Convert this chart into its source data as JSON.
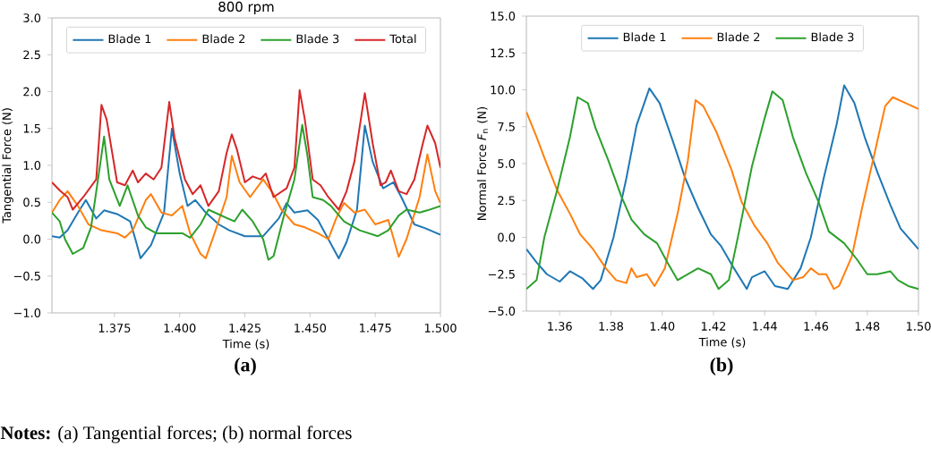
{
  "chart_data": [
    {
      "type": "line",
      "title": "800 rpm",
      "xlabel": "Time (s)",
      "ylabel": "Tangential Force (N)",
      "legend": "top",
      "xlim": [
        1.351,
        1.5
      ],
      "xticks": [
        1.375,
        {
          "value": 1.4,
          "label": "1.400"
        },
        1.425,
        {
          "value": 1.45,
          "label": "1.450"
        },
        1.475,
        {
          "value": 1.5,
          "label": "1.500"
        }
      ],
      "ylim": [
        -1,
        3
      ],
      "yticks": [
        {
          "value": -1,
          "label": "−1.0"
        },
        {
          "value": -0.5,
          "label": "−0.5"
        },
        {
          "value": 0,
          "label": "0.0"
        },
        0.5,
        {
          "value": 1,
          "label": "1.0"
        },
        1.5,
        {
          "value": 2,
          "label": "2.0"
        },
        2.5,
        {
          "value": 3,
          "label": "3.0"
        }
      ],
      "annotations": [
        "(a)",
        "**Notes:** (a) Tangential forces; (b) normal forces"
      ],
      "series": [
        {
          "name": "Blade 1",
          "color": "#1f77b4",
          "x": [
            1.351,
            1.354,
            1.357,
            1.361,
            1.364,
            1.368,
            1.371,
            1.376,
            1.381,
            1.383,
            1.385,
            1.389,
            1.394,
            1.397,
            1.4,
            1.403,
            1.406,
            1.41,
            1.415,
            1.419,
            1.425,
            1.432,
            1.438,
            1.441,
            1.444,
            1.449,
            1.453,
            1.457,
            1.461,
            1.464,
            1.468,
            1.471,
            1.474,
            1.478,
            1.482,
            1.485,
            1.49,
            1.494,
            1.5
          ],
          "values": [
            0.04,
            0.02,
            0.12,
            0.36,
            0.53,
            0.28,
            0.39,
            0.34,
            0.24,
            0.0,
            -0.26,
            -0.08,
            0.36,
            1.5,
            0.89,
            0.45,
            0.53,
            0.36,
            0.2,
            0.12,
            0.04,
            0.04,
            0.28,
            0.49,
            0.36,
            0.39,
            0.26,
            0.0,
            -0.26,
            -0.04,
            0.4,
            1.54,
            1.05,
            0.69,
            0.77,
            0.57,
            0.2,
            0.15,
            0.06
          ]
        },
        {
          "name": "Blade 2",
          "color": "#ff7f0e",
          "x": [
            1.351,
            1.354,
            1.357,
            1.361,
            1.365,
            1.37,
            1.376,
            1.379,
            1.382,
            1.387,
            1.389,
            1.393,
            1.397,
            1.401,
            1.404,
            1.408,
            1.41,
            1.413,
            1.418,
            1.42,
            1.423,
            1.427,
            1.432,
            1.436,
            1.439,
            1.444,
            1.448,
            1.453,
            1.457,
            1.46,
            1.463,
            1.467,
            1.471,
            1.475,
            1.48,
            1.484,
            1.487,
            1.492,
            1.495,
            1.498,
            1.5
          ],
          "values": [
            0.36,
            0.53,
            0.65,
            0.45,
            0.2,
            0.12,
            0.08,
            0.02,
            0.12,
            0.53,
            0.61,
            0.36,
            0.32,
            0.45,
            0.08,
            -0.2,
            -0.26,
            0.04,
            0.57,
            1.13,
            0.77,
            0.57,
            0.81,
            0.61,
            0.4,
            0.2,
            0.16,
            0.08,
            0.0,
            0.28,
            0.49,
            0.36,
            0.4,
            0.2,
            0.26,
            -0.24,
            0.0,
            0.57,
            1.15,
            0.65,
            0.49
          ]
        },
        {
          "name": "Blade 3",
          "color": "#2ca02c",
          "x": [
            1.351,
            1.354,
            1.356,
            1.359,
            1.363,
            1.366,
            1.369,
            1.371,
            1.373,
            1.377,
            1.38,
            1.384,
            1.387,
            1.391,
            1.396,
            1.401,
            1.404,
            1.408,
            1.411,
            1.416,
            1.421,
            1.424,
            1.428,
            1.432,
            1.434,
            1.436,
            1.44,
            1.444,
            1.447,
            1.449,
            1.451,
            1.455,
            1.458,
            1.463,
            1.469,
            1.476,
            1.48,
            1.484,
            1.487,
            1.492,
            1.495,
            1.5
          ],
          "values": [
            0.36,
            0.24,
            0.0,
            -0.2,
            -0.12,
            0.16,
            0.89,
            1.39,
            0.81,
            0.45,
            0.73,
            0.32,
            0.16,
            0.08,
            0.08,
            0.08,
            0.02,
            0.2,
            0.4,
            0.32,
            0.24,
            0.4,
            0.24,
            0.0,
            -0.28,
            -0.23,
            0.32,
            0.81,
            1.55,
            1.13,
            0.57,
            0.53,
            0.45,
            0.24,
            0.12,
            0.04,
            0.12,
            0.32,
            0.4,
            0.36,
            0.39,
            0.45
          ]
        },
        {
          "name": "Total",
          "color": "#d62728",
          "x": [
            1.351,
            1.354,
            1.357,
            1.359,
            1.363,
            1.368,
            1.37,
            1.372,
            1.376,
            1.379,
            1.382,
            1.384,
            1.387,
            1.39,
            1.393,
            1.396,
            1.398,
            1.402,
            1.405,
            1.408,
            1.411,
            1.415,
            1.418,
            1.42,
            1.422,
            1.425,
            1.428,
            1.431,
            1.433,
            1.436,
            1.441,
            1.444,
            1.446,
            1.448,
            1.451,
            1.454,
            1.457,
            1.461,
            1.464,
            1.467,
            1.471,
            1.474,
            1.477,
            1.479,
            1.481,
            1.484,
            1.487,
            1.49,
            1.493,
            1.495,
            1.498,
            1.5
          ],
          "values": [
            0.77,
            0.66,
            0.57,
            0.4,
            0.57,
            0.81,
            1.82,
            1.62,
            0.77,
            0.73,
            0.93,
            0.77,
            0.89,
            0.81,
            0.97,
            1.86,
            1.38,
            0.81,
            0.61,
            0.73,
            0.45,
            0.65,
            1.17,
            1.42,
            1.21,
            0.77,
            0.85,
            0.81,
            0.89,
            0.57,
            0.69,
            0.97,
            2.02,
            1.62,
            0.81,
            0.73,
            0.57,
            0.4,
            0.65,
            1.05,
            1.98,
            1.3,
            0.73,
            0.77,
            0.93,
            0.65,
            0.61,
            0.81,
            1.26,
            1.54,
            1.3,
            0.97
          ]
        }
      ]
    },
    {
      "type": "line",
      "xlabel": "Time (s)",
      "ylabel": "Normal Force *F*$_{n}$ (N)",
      "legend": "top",
      "xlim": [
        1.347,
        1.5
      ],
      "xticks": [
        1.36,
        1.38,
        {
          "value": 1.4,
          "label": "1.40"
        },
        1.42,
        1.44,
        1.46,
        1.48,
        {
          "value": 1.5,
          "label": "1.50"
        }
      ],
      "ylim": [
        -5,
        15
      ],
      "yticks": [
        {
          "value": -5,
          "label": "−5.0"
        },
        {
          "value": -2.5,
          "label": "−2.5"
        },
        {
          "value": 0,
          "label": "0.0"
        },
        2.5,
        {
          "value": 5,
          "label": "5.0"
        },
        7.5,
        {
          "value": 10,
          "label": "10.0"
        },
        12.5,
        {
          "value": 15,
          "label": "15.0"
        }
      ],
      "annotations": [
        "(b)"
      ],
      "series": [
        {
          "name": "Blade 1",
          "color": "#1f77b4",
          "x": [
            1.347,
            1.351,
            1.355,
            1.36,
            1.364,
            1.369,
            1.373,
            1.376,
            1.381,
            1.386,
            1.39,
            1.395,
            1.399,
            1.404,
            1.409,
            1.414,
            1.419,
            1.423,
            1.428,
            1.433,
            1.435,
            1.44,
            1.444,
            1.449,
            1.454,
            1.458,
            1.463,
            1.468,
            1.471,
            1.475,
            1.479,
            1.484,
            1.489,
            1.493,
            1.5
          ],
          "values": [
            -0.8,
            -1.7,
            -2.5,
            -3.0,
            -2.3,
            -2.8,
            -3.5,
            -2.9,
            0.0,
            4.0,
            7.6,
            10.1,
            9.1,
            6.6,
            4.0,
            2.0,
            0.2,
            -0.6,
            -2.1,
            -3.5,
            -2.7,
            -2.3,
            -3.3,
            -3.5,
            -2.1,
            0.0,
            4.0,
            7.6,
            10.3,
            9.1,
            6.8,
            4.4,
            2.2,
            0.6,
            -0.8
          ]
        },
        {
          "name": "Blade 2",
          "color": "#ff7f0e",
          "x": [
            1.347,
            1.351,
            1.354,
            1.359,
            1.364,
            1.368,
            1.373,
            1.378,
            1.382,
            1.386,
            1.388,
            1.39,
            1.394,
            1.397,
            1.401,
            1.406,
            1.41,
            1.413,
            1.416,
            1.421,
            1.427,
            1.431,
            1.436,
            1.441,
            1.445,
            1.451,
            1.455,
            1.458,
            1.461,
            1.464,
            1.467,
            1.469,
            1.474,
            1.478,
            1.483,
            1.487,
            1.49,
            1.495,
            1.5
          ],
          "values": [
            8.5,
            6.8,
            5.4,
            3.2,
            1.6,
            0.2,
            -0.8,
            -2.1,
            -2.9,
            -3.1,
            -2.1,
            -2.7,
            -2.5,
            -3.3,
            -2.1,
            1.6,
            5.2,
            9.3,
            8.9,
            7.2,
            4.6,
            2.4,
            0.8,
            -0.4,
            -1.7,
            -2.9,
            -2.7,
            -2.1,
            -2.5,
            -2.5,
            -3.5,
            -3.3,
            -1.3,
            2.0,
            5.8,
            8.9,
            9.5,
            9.1,
            8.7
          ]
        },
        {
          "name": "Blade 3",
          "color": "#2ca02c",
          "x": [
            1.347,
            1.351,
            1.354,
            1.359,
            1.364,
            1.367,
            1.371,
            1.374,
            1.379,
            1.384,
            1.388,
            1.393,
            1.398,
            1.402,
            1.406,
            1.41,
            1.414,
            1.419,
            1.422,
            1.426,
            1.43,
            1.435,
            1.44,
            1.443,
            1.447,
            1.451,
            1.456,
            1.461,
            1.465,
            1.471,
            1.476,
            1.48,
            1.484,
            1.489,
            1.492,
            1.496,
            1.5
          ],
          "values": [
            -3.5,
            -2.9,
            0.0,
            3.2,
            6.8,
            9.5,
            9.1,
            7.4,
            5.2,
            2.8,
            1.2,
            0.2,
            -0.4,
            -1.7,
            -2.9,
            -2.5,
            -2.1,
            -2.5,
            -3.5,
            -2.9,
            0.4,
            4.8,
            8.1,
            9.9,
            9.3,
            6.8,
            4.4,
            2.4,
            0.4,
            -0.4,
            -1.5,
            -2.5,
            -2.5,
            -2.3,
            -2.9,
            -3.3,
            -3.5
          ]
        }
      ]
    }
  ]
}
